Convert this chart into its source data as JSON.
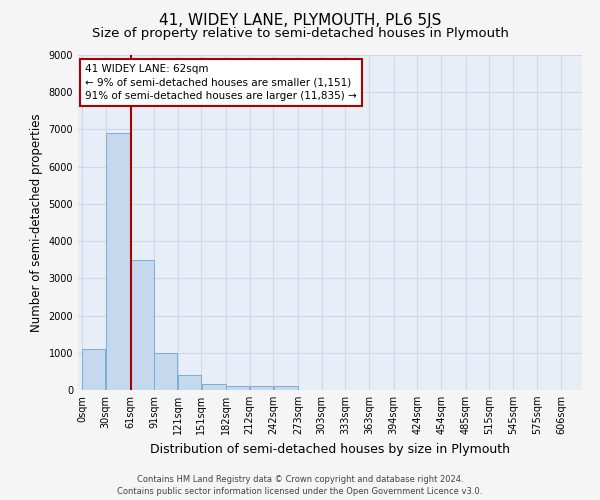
{
  "title": "41, WIDEY LANE, PLYMOUTH, PL6 5JS",
  "subtitle": "Size of property relative to semi-detached houses in Plymouth",
  "xlabel": "Distribution of semi-detached houses by size in Plymouth",
  "ylabel": "Number of semi-detached properties",
  "footer_line1": "Contains HM Land Registry data © Crown copyright and database right 2024.",
  "footer_line2": "Contains public sector information licensed under the Open Government Licence v3.0.",
  "property_size": 62,
  "pct_smaller": 9,
  "count_smaller": 1151,
  "pct_larger": 91,
  "count_larger": 11835,
  "bar_left_edges": [
    0,
    30,
    61,
    91,
    121,
    151,
    182,
    212,
    242,
    273,
    303,
    333,
    363,
    394,
    424,
    454,
    485,
    515,
    545,
    575
  ],
  "bar_widths": [
    30,
    31,
    30,
    30,
    30,
    31,
    30,
    30,
    31,
    30,
    30,
    30,
    31,
    30,
    30,
    31,
    30,
    30,
    30,
    31
  ],
  "bar_heights": [
    1100,
    6900,
    3500,
    1000,
    400,
    150,
    100,
    100,
    100,
    0,
    0,
    0,
    0,
    0,
    0,
    0,
    0,
    0,
    0,
    0
  ],
  "bar_color": "#c5d8ee",
  "bar_edgecolor": "#7aaed4",
  "vline_color": "#aa0000",
  "vline_x": 62,
  "annotation_box_edgecolor": "#aa0000",
  "ylim": [
    0,
    9000
  ],
  "yticks": [
    0,
    1000,
    2000,
    3000,
    4000,
    5000,
    6000,
    7000,
    8000,
    9000
  ],
  "xtick_labels": [
    "0sqm",
    "30sqm",
    "61sqm",
    "91sqm",
    "121sqm",
    "151sqm",
    "182sqm",
    "212sqm",
    "242sqm",
    "273sqm",
    "303sqm",
    "333sqm",
    "363sqm",
    "394sqm",
    "424sqm",
    "454sqm",
    "485sqm",
    "515sqm",
    "545sqm",
    "575sqm",
    "606sqm"
  ],
  "xtick_positions": [
    0,
    30,
    61,
    91,
    121,
    151,
    182,
    212,
    242,
    273,
    303,
    333,
    363,
    394,
    424,
    454,
    485,
    515,
    545,
    575,
    606
  ],
  "background_color": "#e8eef7",
  "grid_color": "#d0d8e8",
  "title_fontsize": 11,
  "subtitle_fontsize": 9.5,
  "axis_label_fontsize": 8.5,
  "tick_fontsize": 7,
  "annotation_fontsize": 7.5
}
